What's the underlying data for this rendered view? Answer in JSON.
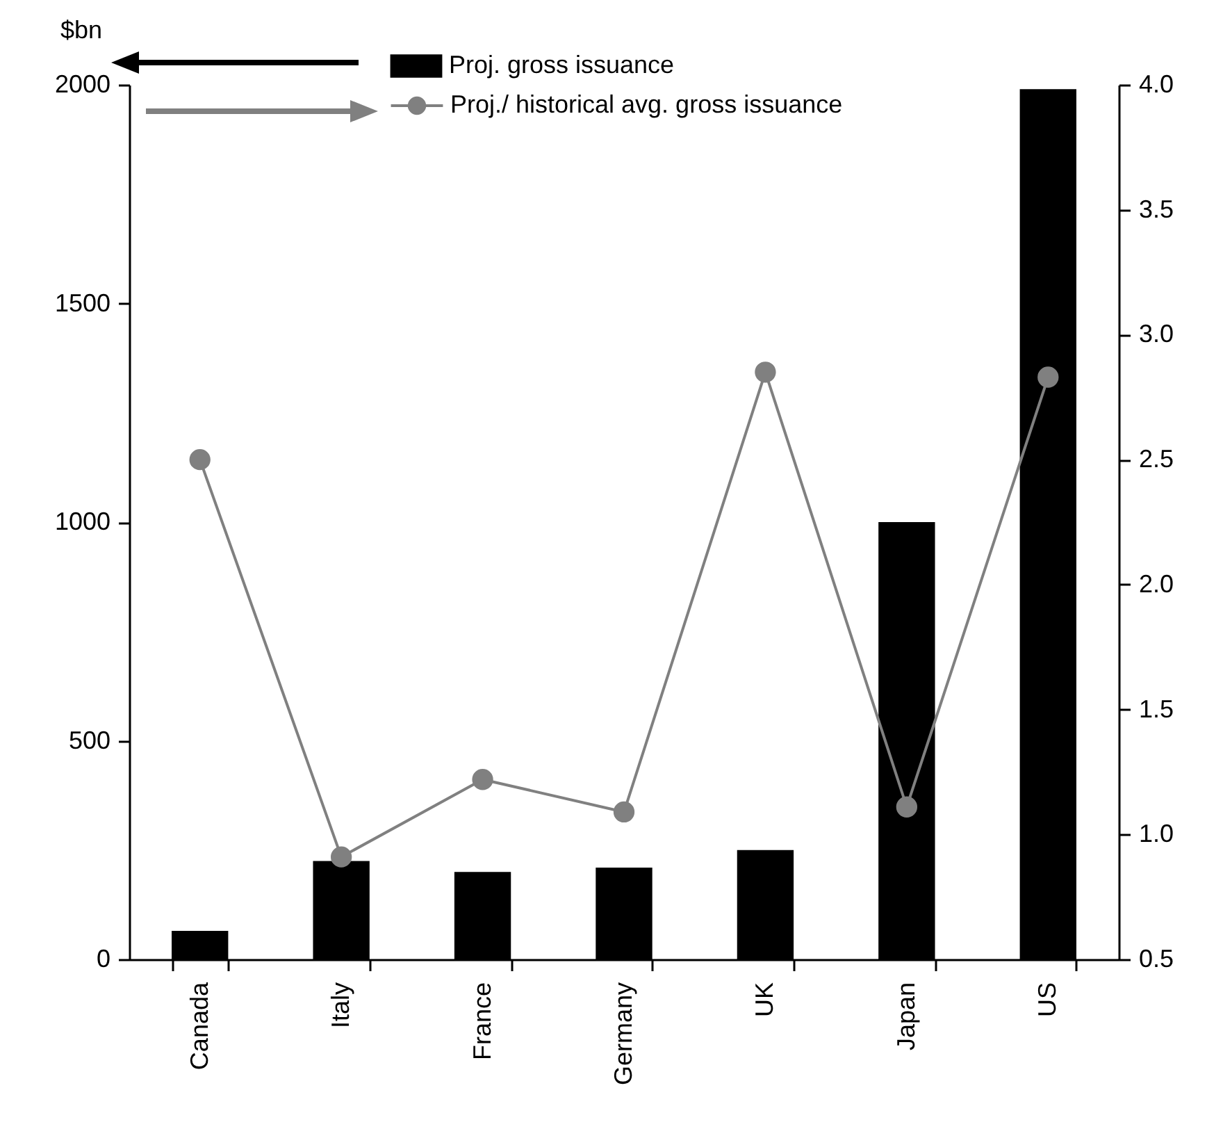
{
  "chart_data": {
    "type": "bar",
    "ylabel": "$bn",
    "categories": [
      "Canada",
      "Italy",
      "France",
      "Germany",
      "UK",
      "Japan",
      "US"
    ],
    "series": [
      {
        "name": "Proj. gross issuance",
        "color": "#000000",
        "values": [
          65,
          225,
          200,
          210,
          250,
          1000,
          1990
        ]
      },
      {
        "name": "Proj./ historical avg. gross issuance",
        "type": "line",
        "axis": "y2",
        "color": "#808080",
        "values": [
          2.5,
          0.91,
          1.22,
          1.09,
          2.85,
          1.11,
          2.83
        ]
      }
    ],
    "ylim": [
      0,
      2000
    ],
    "yticks": [
      0,
      500,
      1000,
      1500,
      2000
    ],
    "y2lim": [
      0.5,
      4.0
    ],
    "y2ticks": [
      {
        "value": 0.5,
        "label": "0.5"
      },
      {
        "value": 1,
        "label": "1.0"
      },
      {
        "value": 1.5,
        "label": "1.5"
      },
      {
        "value": 2,
        "label": "2.0"
      },
      {
        "value": 2.5,
        "label": "2.5"
      },
      {
        "value": 3,
        "label": "3.0"
      },
      {
        "value": 3.5,
        "label": "3.5"
      },
      {
        "value": 4,
        "label": "4.0"
      }
    ],
    "grid": false,
    "legend": "top",
    "marker": "circle",
    "line_style": "solid"
  }
}
